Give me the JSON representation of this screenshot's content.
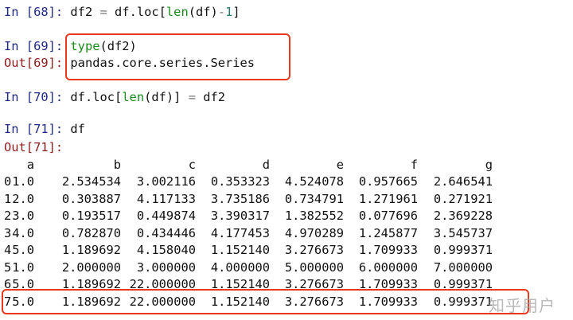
{
  "cells": [
    {
      "prompt": "In [68]: ",
      "type": "in",
      "parts": [
        [
          "df2 ",
          ""
        ],
        [
          "=",
          "op"
        ],
        [
          " df.loc[",
          ""
        ],
        [
          "len",
          "kw"
        ],
        [
          "(df)",
          ""
        ],
        [
          "-",
          "op"
        ],
        [
          "1",
          "num"
        ],
        [
          "]",
          ""
        ]
      ]
    },
    {
      "prompt": "In [69]: ",
      "type": "in",
      "parts": [
        [
          "type",
          "kw"
        ],
        [
          "(df2)",
          ""
        ]
      ]
    },
    {
      "prompt": "Out[69]: ",
      "type": "out",
      "parts": [
        [
          "pandas.core.series.Series",
          ""
        ]
      ]
    },
    {
      "prompt": "In [70]: ",
      "type": "in",
      "parts": [
        [
          "df.loc[",
          ""
        ],
        [
          "len",
          "kw"
        ],
        [
          "(df)] ",
          ""
        ],
        [
          "=",
          "op"
        ],
        [
          " df2",
          ""
        ]
      ]
    },
    {
      "prompt": "In [71]: ",
      "type": "in",
      "parts": [
        [
          "df",
          ""
        ]
      ]
    },
    {
      "prompt": "Out[71]:",
      "type": "out",
      "parts": []
    }
  ],
  "table": {
    "columns": [
      "a",
      "b",
      "c",
      "d",
      "e",
      "f",
      "g"
    ],
    "rows": [
      {
        "index": "0",
        "values": [
          "1.0",
          "2.534534",
          "3.002116",
          "0.353323",
          "4.524078",
          "0.957665",
          "2.646541"
        ]
      },
      {
        "index": "1",
        "values": [
          "2.0",
          "0.303887",
          "4.117133",
          "3.735186",
          "0.734791",
          "1.271961",
          "0.271921"
        ]
      },
      {
        "index": "2",
        "values": [
          "3.0",
          "0.193517",
          "0.449874",
          "3.390317",
          "1.382552",
          "0.077696",
          "2.369228"
        ]
      },
      {
        "index": "3",
        "values": [
          "4.0",
          "0.782870",
          "0.434446",
          "4.177453",
          "4.970289",
          "1.245877",
          "3.545737"
        ]
      },
      {
        "index": "4",
        "values": [
          "5.0",
          "1.189692",
          "4.158040",
          "1.152140",
          "3.276673",
          "1.709933",
          "0.999371"
        ]
      },
      {
        "index": "5",
        "values": [
          "1.0",
          "2.000000",
          "3.000000",
          "4.000000",
          "5.000000",
          "6.000000",
          "7.000000"
        ]
      },
      {
        "index": "6",
        "values": [
          "5.0",
          "1.189692",
          "22.000000",
          "1.152140",
          "3.276673",
          "1.709933",
          "0.999371"
        ]
      },
      {
        "index": "7",
        "values": [
          "5.0",
          "1.189692",
          "22.000000",
          "1.152140",
          "3.276673",
          "1.709933",
          "0.999371"
        ]
      }
    ]
  },
  "highlight_color": "#e8391f",
  "watermark": "知乎用户"
}
